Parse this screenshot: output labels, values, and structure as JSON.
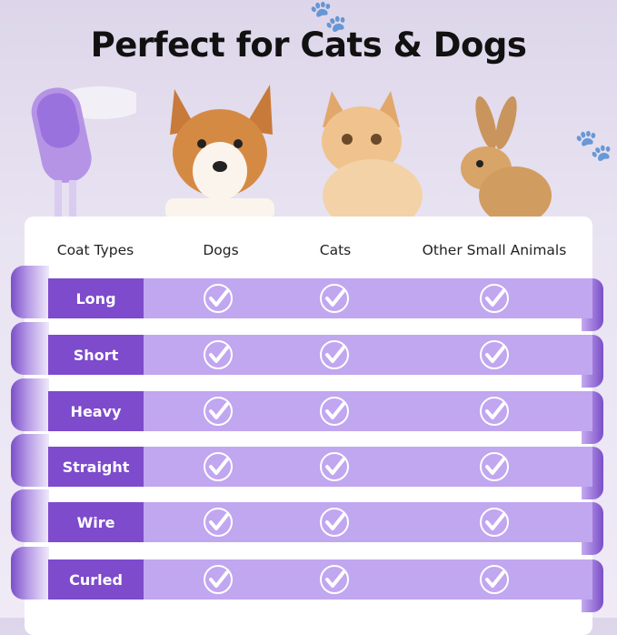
{
  "title": "Perfect for Cats & Dogs",
  "headers": [
    "Coat Types",
    "Dogs",
    "Cats",
    "Other Small Animals"
  ],
  "rows": [
    {
      "label": "Long",
      "dogs": true,
      "cats": true,
      "other": true
    },
    {
      "label": "Short",
      "dogs": true,
      "cats": true,
      "other": true
    },
    {
      "label": "Heavy",
      "dogs": true,
      "cats": true,
      "other": true
    },
    {
      "label": "Straight",
      "dogs": true,
      "cats": true,
      "other": true
    },
    {
      "label": "Wire",
      "dogs": true,
      "cats": true,
      "other": true
    },
    {
      "label": "Curled",
      "dogs": true,
      "cats": true,
      "other": true
    }
  ],
  "colors": {
    "label_bg": "#7d4bcc",
    "band": "#c1a6f0",
    "background": "#e9e4f2"
  },
  "icons": [
    "check-circle-icon",
    "paw-icon",
    "steam-brush-image",
    "dog-image",
    "cat-image",
    "rabbit-image"
  ]
}
